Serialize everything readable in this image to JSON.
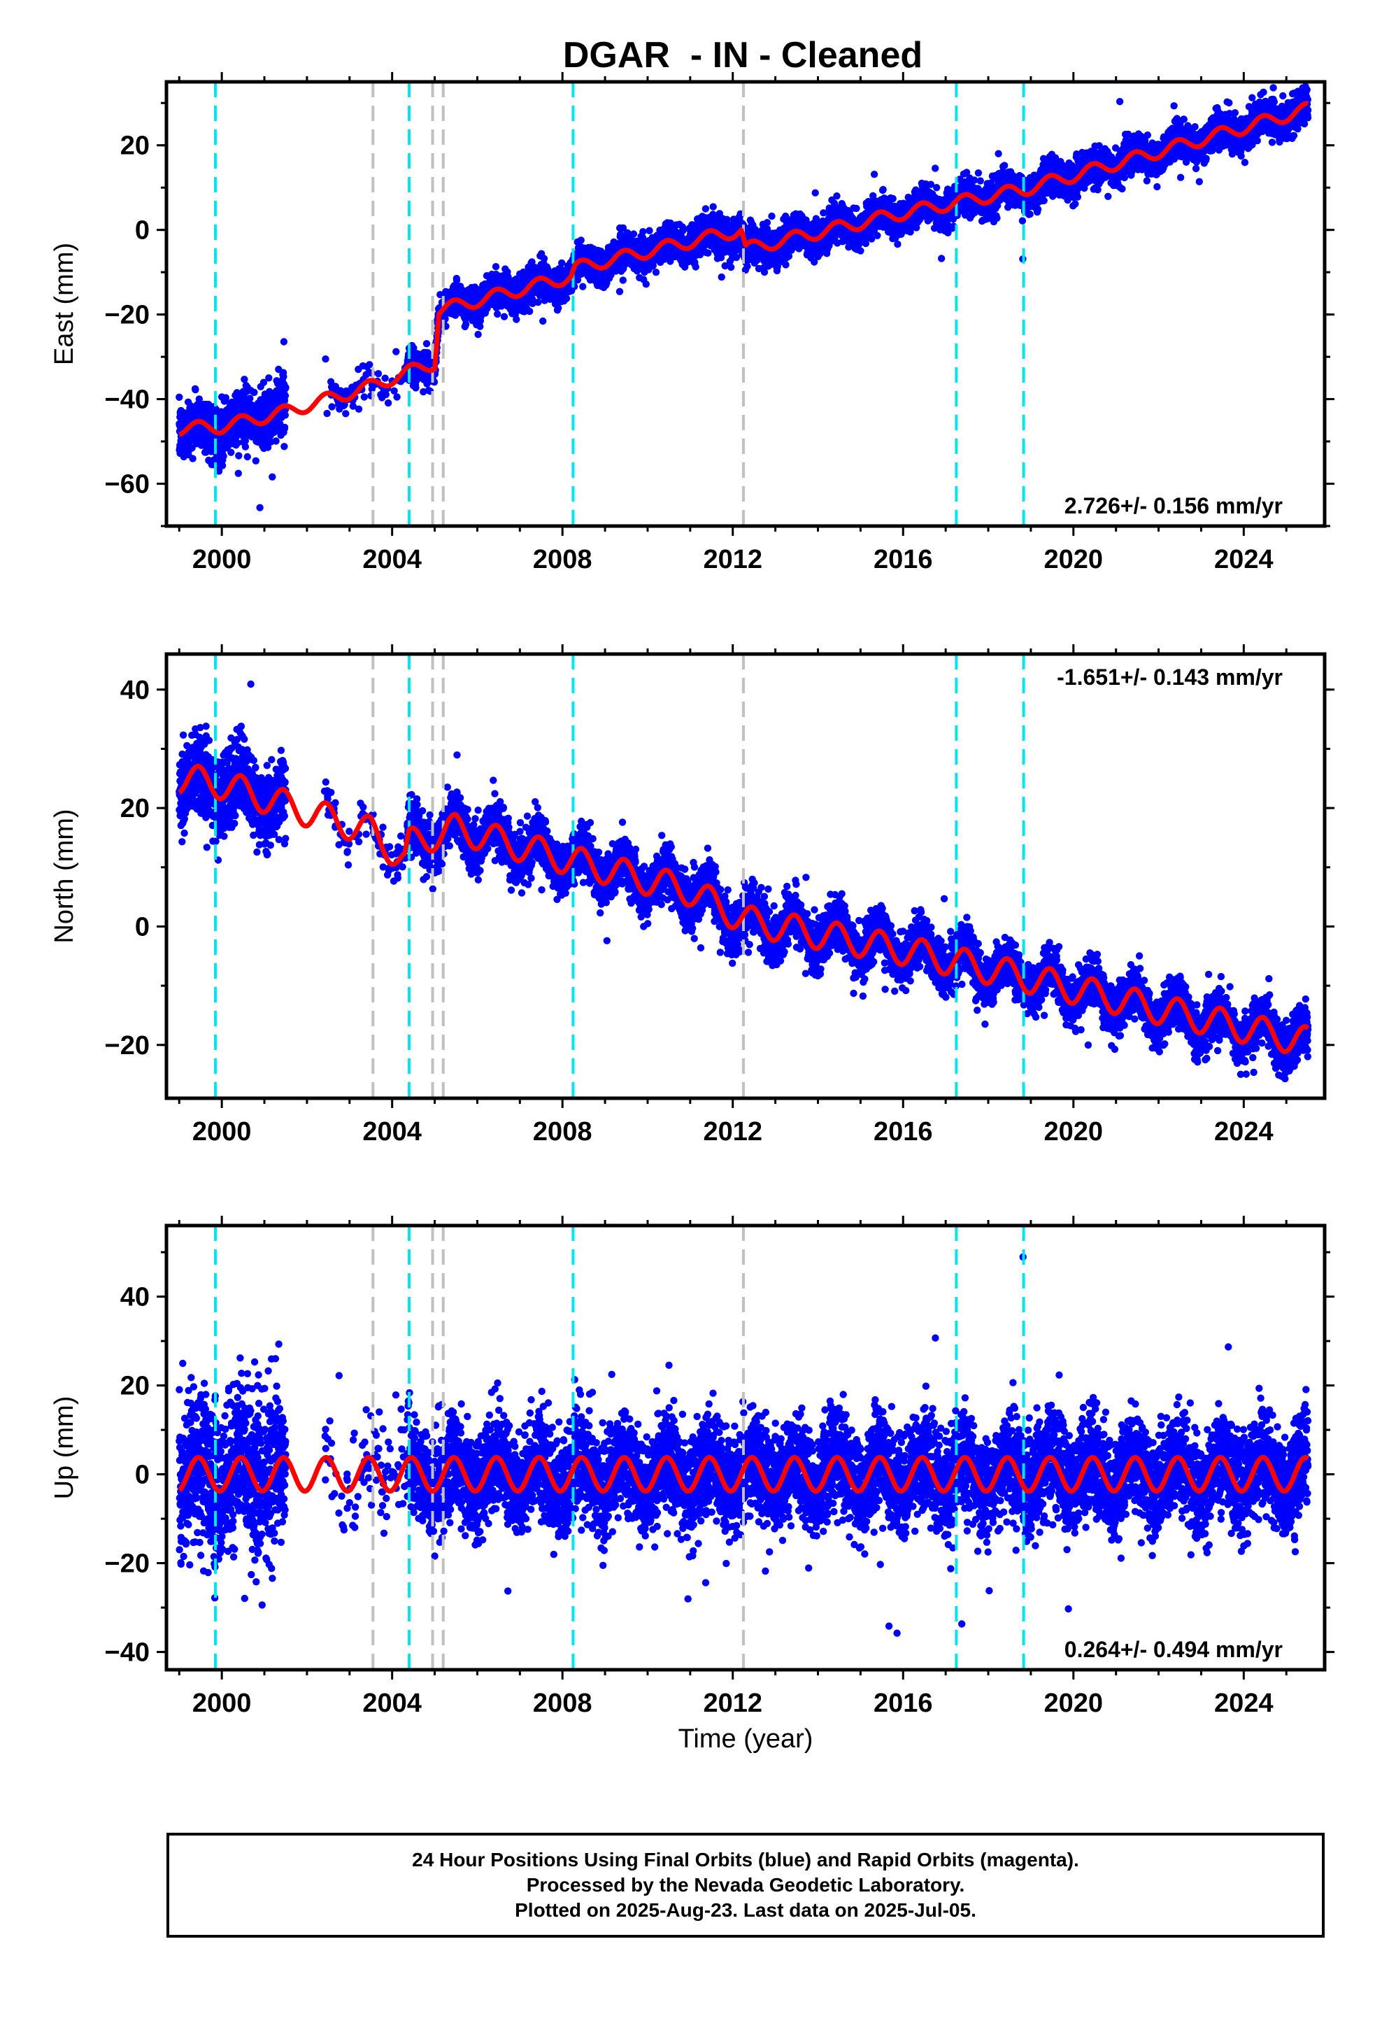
{
  "title": "DGAR  - IN - Cleaned",
  "xlabel": "Time (year)",
  "footer": {
    "line1": "24 Hour Positions Using Final Orbits (blue) and Rapid Orbits (magenta).",
    "line2": "Processed by the Nevada Geodetic Laboratory.",
    "line3": "Plotted on 2025-Aug-23. Last data on 2025-Jul-05."
  },
  "colors": {
    "data": "#0000ff",
    "fit": "#ff0000",
    "antenna_change": "#00e5ee",
    "other_event": "#c0c0c0"
  },
  "chart_data": [
    {
      "type": "scatter",
      "ylabel": "East (mm)",
      "rate_label": "2.726+/- 0.156 mm/yr",
      "rate_position": "bottom-right",
      "xlim": [
        1998.7,
        2025.9
      ],
      "ylim": [
        -70,
        35
      ],
      "xticks": [
        2000,
        2004,
        2008,
        2012,
        2016,
        2020,
        2024
      ],
      "yticks": [
        -60,
        -40,
        -20,
        0,
        20
      ],
      "grid": false,
      "data_start": 1999.0,
      "data_end": 2025.51,
      "gaps": [
        [
          2001.5,
          2002.4
        ]
      ],
      "sparse": [
        [
          2002.4,
          2004.35
        ]
      ],
      "rate": 2.726,
      "annual_amp": 1.5,
      "noise": 2.0,
      "anchors": [
        [
          1999.0,
          -47
        ],
        [
          2000.0,
          -46.5
        ],
        [
          2001.5,
          -43
        ],
        [
          2003.5,
          -37
        ],
        [
          2004.4,
          -33.5
        ],
        [
          2005.0,
          -31.5
        ],
        [
          2005.1,
          -19
        ],
        [
          2008.2,
          -11
        ],
        [
          2008.3,
          -9
        ],
        [
          2012.2,
          0
        ],
        [
          2012.3,
          -4.5
        ],
        [
          2016.0,
          4
        ],
        [
          2018.8,
          9.5
        ],
        [
          2022.0,
          18.5
        ],
        [
          2025.5,
          28.5
        ]
      ],
      "series": [
        {
          "name": "Final Orbits",
          "color": "#0000ff"
        },
        {
          "name": "Rapid Orbits",
          "color": "#ff00ff"
        }
      ]
    },
    {
      "type": "scatter",
      "ylabel": "North (mm)",
      "rate_label": "-1.651+/- 0.143 mm/yr",
      "rate_position": "top-right",
      "xlim": [
        1998.7,
        2025.9
      ],
      "ylim": [
        -29,
        46
      ],
      "xticks": [
        2000,
        2004,
        2008,
        2012,
        2016,
        2020,
        2024
      ],
      "yticks": [
        -20,
        0,
        20,
        40
      ],
      "grid": false,
      "data_start": 1999.0,
      "data_end": 2025.51,
      "gaps": [
        [
          2001.5,
          2002.4
        ]
      ],
      "sparse": [
        [
          2002.4,
          2004.35
        ]
      ],
      "rate": -1.651,
      "annual_amp": 2.5,
      "noise": 2.0,
      "anchors": [
        [
          1999.0,
          25
        ],
        [
          2000.0,
          24
        ],
        [
          2001.5,
          20.5
        ],
        [
          2003.5,
          16
        ],
        [
          2004.3,
          11
        ],
        [
          2004.4,
          14
        ],
        [
          2005.5,
          16.5
        ],
        [
          2008.0,
          11.5
        ],
        [
          2011.0,
          6
        ],
        [
          2012.3,
          1
        ],
        [
          2016.0,
          -4
        ],
        [
          2018.8,
          -8.5
        ],
        [
          2022.0,
          -14
        ],
        [
          2025.5,
          -19.5
        ]
      ],
      "series": [
        {
          "name": "Final Orbits",
          "color": "#0000ff"
        },
        {
          "name": "Rapid Orbits",
          "color": "#ff00ff"
        }
      ]
    },
    {
      "type": "scatter",
      "ylabel": "Up (mm)",
      "rate_label": "0.264+/- 0.494 mm/yr",
      "rate_position": "bottom-right",
      "xlim": [
        1998.7,
        2025.9
      ],
      "ylim": [
        -44,
        56
      ],
      "xticks": [
        2000,
        2004,
        2008,
        2012,
        2016,
        2020,
        2024
      ],
      "yticks": [
        -40,
        -20,
        0,
        20,
        40
      ],
      "grid": false,
      "data_start": 1999.0,
      "data_end": 2025.51,
      "gaps": [
        [
          2001.5,
          2002.4
        ]
      ],
      "sparse": [
        [
          2002.4,
          2004.35
        ]
      ],
      "rate": 0.264,
      "annual_amp": 3.8,
      "noise": 5.5,
      "anchors": [
        [
          1999.0,
          0
        ],
        [
          2025.5,
          0
        ]
      ],
      "series": [
        {
          "name": "Final Orbits",
          "color": "#0000ff"
        },
        {
          "name": "Rapid Orbits",
          "color": "#ff00ff"
        }
      ]
    }
  ],
  "events": {
    "antenna_change": [
      1999.85,
      2004.4,
      2008.25,
      2017.25,
      2018.83
    ],
    "other_event": [
      2003.55,
      2004.95,
      2005.2,
      2012.25
    ]
  }
}
